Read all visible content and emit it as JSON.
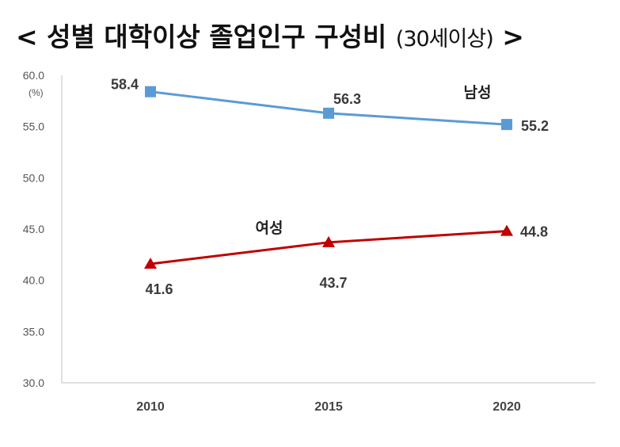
{
  "title": {
    "main": "< 성별 대학이상 졸업인구 구성비 ",
    "sub": "(30세이상)",
    "close": " >"
  },
  "chart_data": {
    "type": "line",
    "unit_label": "(%)",
    "categories": [
      "2010",
      "2015",
      "2020"
    ],
    "ylim": [
      30.0,
      60.0
    ],
    "yticks": [
      "30.0",
      "35.0",
      "40.0",
      "45.0",
      "50.0",
      "55.0",
      "60.0"
    ],
    "grid": false,
    "series": [
      {
        "name": "남성",
        "values": [
          58.4,
          56.3,
          55.2
        ],
        "labels": [
          "58.4",
          "56.3",
          "55.2"
        ],
        "color": "#5b9bd5",
        "marker": "square"
      },
      {
        "name": "여성",
        "values": [
          41.6,
          43.7,
          44.8
        ],
        "labels": [
          "41.6",
          "43.7",
          "44.8"
        ],
        "color": "#c00000",
        "marker": "triangle"
      }
    ]
  }
}
